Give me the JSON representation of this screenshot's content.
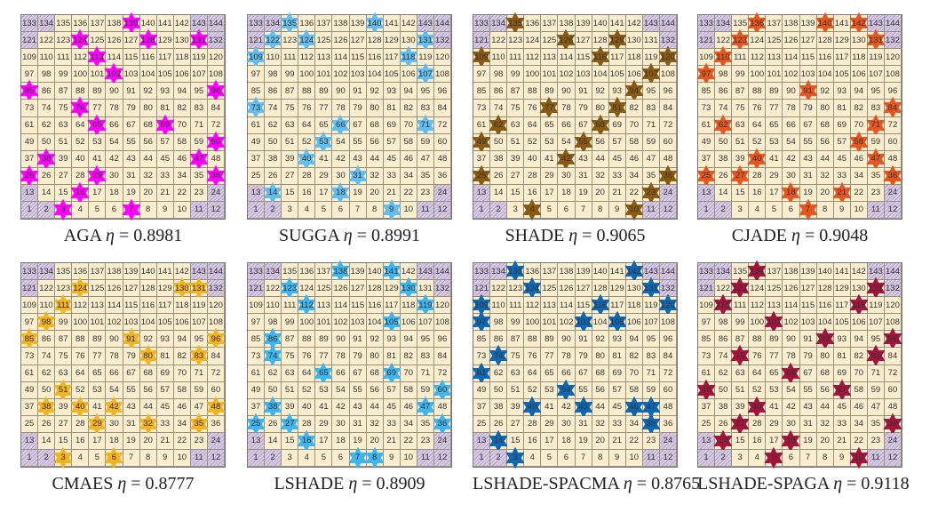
{
  "panels": [
    {
      "name": "AGA",
      "eta_label": "η",
      "eta": "0.8981",
      "color": "#ff00ff",
      "stars": [
        139,
        124,
        128,
        131,
        113,
        102,
        85,
        96,
        76,
        65,
        69,
        60,
        38,
        47,
        25,
        29,
        36,
        16,
        3,
        7
      ]
    },
    {
      "name": "SUGGA",
      "eta_label": "η",
      "eta": "0.8991",
      "color": "#62bdf0",
      "stars": [
        135,
        140,
        122,
        124,
        131,
        109,
        118,
        107,
        73,
        66,
        71,
        53,
        40,
        31,
        14,
        18,
        9
      ]
    },
    {
      "name": "SHADE",
      "eta_label": "η",
      "eta": "0.9065",
      "color": "#8a5a12",
      "stars": [
        135,
        126,
        129,
        109,
        116,
        120,
        107,
        94,
        77,
        81,
        62,
        68,
        49,
        55,
        42,
        25,
        36,
        23,
        4,
        10
      ]
    },
    {
      "name": "CJADE",
      "eta_label": "η",
      "eta": "0.9048",
      "color": "#e6561e",
      "stars": [
        136,
        140,
        142,
        123,
        131,
        110,
        97,
        91,
        84,
        62,
        71,
        58,
        40,
        47,
        25,
        27,
        36,
        18,
        21,
        7
      ]
    },
    {
      "name": "CMAES",
      "eta_label": "η",
      "eta": "0.8777",
      "color": "#f4b421",
      "stars": [
        124,
        130,
        131,
        111,
        98,
        85,
        91,
        96,
        80,
        83,
        51,
        38,
        40,
        42,
        48,
        29,
        32,
        35,
        3,
        6
      ]
    },
    {
      "name": "LSHADE",
      "eta_label": "η",
      "eta": "0.8909",
      "color": "#3db6ef",
      "stars": [
        138,
        141,
        123,
        130,
        112,
        119,
        105,
        86,
        74,
        65,
        69,
        60,
        38,
        47,
        25,
        27,
        36,
        16,
        7,
        8
      ]
    },
    {
      "name": "LSHADE-SPACMA",
      "eta_label": "η",
      "eta": "0.8765",
      "color": "#0d67b3",
      "stars": [
        135,
        142,
        124,
        131,
        109,
        116,
        120,
        97,
        103,
        105,
        74,
        61,
        54,
        40,
        43,
        46,
        47,
        35,
        14,
        3
      ]
    },
    {
      "name": "LSHADE-SPAGA",
      "eta_label": "η",
      "eta": "0.9118",
      "color": "#a3143c",
      "stars": [
        136,
        123,
        131,
        110,
        118,
        101,
        92,
        96,
        75,
        83,
        66,
        49,
        57,
        40,
        27,
        36,
        14,
        18,
        5,
        10
      ]
    }
  ],
  "excluded_cells": [
    1,
    2,
    11,
    12,
    13,
    24,
    121,
    132,
    133,
    134,
    143,
    144
  ]
}
